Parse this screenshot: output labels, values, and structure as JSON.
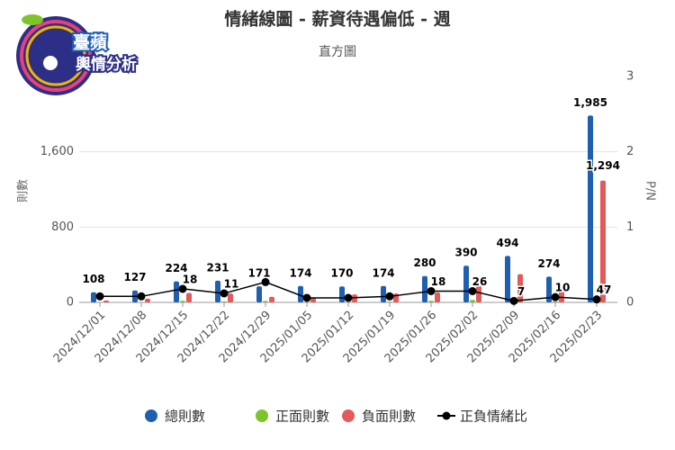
{
  "logo": {
    "line1": "臺蘋",
    "line2": "輿情分析"
  },
  "chart_data": {
    "type": "bar",
    "title": "情緒線圖 - 薪資待遇偏低 - 週",
    "subtitle": "直方圖",
    "y_label": "則數",
    "y2_label": "P/N",
    "categories": [
      "2024/12/01",
      "2024/12/08",
      "2024/12/15",
      "2024/12/22",
      "2024/12/29",
      "2025/01/05",
      "2025/01/12",
      "2025/01/19",
      "2025/01/26",
      "2025/02/02",
      "2025/02/09",
      "2025/02/16",
      "2025/02/23"
    ],
    "series": [
      {
        "name": "總則數",
        "color": "#1f5fb0",
        "values": [
          108,
          127,
          224,
          231,
          171,
          174,
          170,
          174,
          280,
          390,
          494,
          274,
          1985
        ],
        "value_labels": [
          "108",
          "127",
          "224",
          "231",
          "171",
          "174",
          "170",
          "174",
          "280",
          "390",
          "494",
          "274",
          "1,985"
        ]
      },
      {
        "name": "正面則數",
        "color": "#7dc42a",
        "values": [
          2,
          3,
          18,
          11,
          16,
          3,
          5,
          8,
          18,
          26,
          7,
          10,
          47
        ],
        "value_labels": [
          null,
          null,
          "18",
          "11",
          null,
          null,
          null,
          null,
          "18",
          "26",
          "7",
          "10",
          "47"
        ]
      },
      {
        "name": "負面則數",
        "color": "#e35a5a",
        "values": [
          20,
          40,
          100,
          95,
          60,
          50,
          85,
          95,
          105,
          175,
          300,
          135,
          1294
        ],
        "value_labels": [
          null,
          null,
          null,
          null,
          null,
          null,
          null,
          null,
          null,
          null,
          null,
          null,
          "1,294"
        ]
      },
      {
        "name": "正負情緒比",
        "type": "line",
        "color": "#000000",
        "axis": "y2",
        "values": [
          0.08,
          0.08,
          0.18,
          0.12,
          0.27,
          0.06,
          0.06,
          0.08,
          0.15,
          0.15,
          0.02,
          0.07,
          0.04
        ]
      }
    ],
    "ylim": [
      0,
      2400
    ],
    "yticks": [
      0,
      800,
      {
        "value": 1600,
        "label": "1,600"
      }
    ],
    "y2lim": [
      0,
      3
    ],
    "y2ticks": [
      0,
      1,
      2,
      3
    ],
    "grid": true
  }
}
